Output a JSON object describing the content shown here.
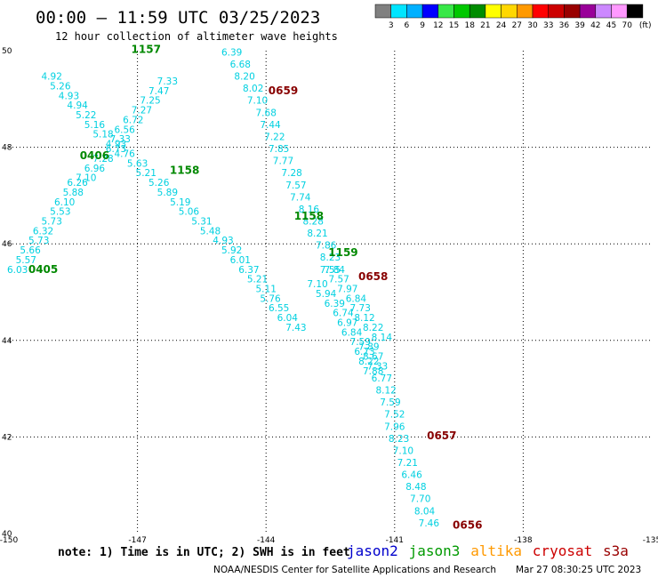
{
  "header": {
    "title": "00:00 – 11:59 UTC 03/25/2023",
    "subtitle": "12 hour collection of altimeter wave heights"
  },
  "color_scale": {
    "labels": [
      "3",
      "6",
      "9",
      "12",
      "15",
      "18",
      "21",
      "24",
      "27",
      "30",
      "33",
      "36",
      "39",
      "42",
      "45",
      "70"
    ],
    "unit": "(ft)",
    "colors": [
      "#808080",
      "#00e5ff",
      "#00b0ff",
      "#0000ff",
      "#38e848",
      "#00c800",
      "#008c00",
      "#ffff00",
      "#ffd700",
      "#ff9900",
      "#ff0000",
      "#cc0000",
      "#990000",
      "#990099",
      "#cc88ff",
      "#ff99ff",
      "#000000"
    ]
  },
  "footer": {
    "note": "note: 1) Time is in UTC; 2) SWH is in feet",
    "satellites": [
      {
        "name": "jason2",
        "color": "#0000cc"
      },
      {
        "name": "jason3",
        "color": "#009900"
      },
      {
        "name": "altika",
        "color": "#ff9900"
      },
      {
        "name": "cryosat",
        "color": "#cc0000"
      },
      {
        "name": "s3a",
        "color": "#990000"
      }
    ],
    "credit": "NOAA/NESDIS Center for Satellite Applications and Research",
    "timestamp": "Mar 27 08:30:25 UTC 2023"
  },
  "chart_data": {
    "type": "scatter",
    "xlim": [
      -150,
      -135
    ],
    "ylim": [
      40,
      50
    ],
    "x_ticks": [
      "-150",
      "-147",
      "-144",
      "-141",
      "-138",
      "-135"
    ],
    "y_ticks": [
      "40",
      "42",
      "44",
      "46",
      "48",
      "50"
    ],
    "grid": true,
    "point_color": "#00d0e0",
    "tracks": [
      {
        "label": "0405",
        "label_color": "#008800",
        "label_pos": [
          -149.2,
          45.4
        ],
        "points": [
          [
            -149.8,
            45.4,
            "6.03"
          ],
          [
            -149.6,
            45.6,
            "5.57"
          ],
          [
            -149.5,
            45.8,
            "5.66"
          ],
          [
            -149.3,
            46.0,
            "5.73"
          ],
          [
            -149.2,
            46.2,
            "6.32"
          ],
          [
            -149.0,
            46.4,
            "5.73"
          ],
          [
            -148.8,
            46.6,
            "5.53"
          ],
          [
            -148.7,
            46.8,
            "6.10"
          ],
          [
            -148.5,
            47.0,
            "5.88"
          ],
          [
            -148.4,
            47.2,
            "6.26"
          ],
          [
            -148.2,
            47.3,
            "7.10"
          ],
          [
            -148.0,
            47.5,
            "6.96"
          ],
          [
            -147.8,
            47.7,
            "7.28"
          ],
          [
            -147.5,
            47.9,
            "6.73"
          ],
          [
            -147.4,
            48.1,
            "7.33"
          ],
          [
            -147.3,
            48.3,
            "6.56"
          ],
          [
            -147.1,
            48.5,
            "6.72"
          ],
          [
            -146.9,
            48.7,
            "7.27"
          ],
          [
            -146.7,
            48.9,
            "7.25"
          ],
          [
            -146.5,
            49.1,
            "7.47"
          ],
          [
            -146.3,
            49.3,
            "7.33"
          ]
        ]
      },
      {
        "label": "0406",
        "label_color": "#008800",
        "label_pos": [
          -148.0,
          47.75
        ],
        "points": []
      },
      {
        "label": "1157",
        "label_color": "#008800",
        "label_pos": [
          -146.8,
          49.95
        ],
        "points": [
          [
            -149.0,
            49.4,
            "4.92"
          ],
          [
            -148.8,
            49.2,
            "5.26"
          ],
          [
            -148.6,
            49.0,
            "4.93"
          ],
          [
            -148.4,
            48.8,
            "4.94"
          ],
          [
            -148.2,
            48.6,
            "5.22"
          ],
          [
            -148.0,
            48.4,
            "5.16"
          ],
          [
            -147.8,
            48.2,
            "5.18"
          ],
          [
            -147.5,
            48.0,
            "4.93"
          ],
          [
            -147.3,
            47.8,
            "4.76"
          ],
          [
            -147.0,
            47.6,
            "5.63"
          ],
          [
            -146.8,
            47.4,
            "5.21"
          ],
          [
            -146.5,
            47.2,
            "5.26"
          ],
          [
            -146.3,
            47.0,
            "5.89"
          ],
          [
            -146.0,
            46.8,
            "5.19"
          ],
          [
            -145.8,
            46.6,
            "5.06"
          ],
          [
            -145.5,
            46.4,
            "5.31"
          ],
          [
            -145.3,
            46.2,
            "5.48"
          ],
          [
            -145.0,
            46.0,
            "4.93"
          ],
          [
            -144.8,
            45.8,
            "5.92"
          ],
          [
            -144.6,
            45.6,
            "6.01"
          ],
          [
            -144.4,
            45.4,
            "6.37"
          ],
          [
            -144.2,
            45.2,
            "5.21"
          ],
          [
            -144.0,
            45.0,
            "5.11"
          ],
          [
            -143.9,
            44.8,
            "5.76"
          ],
          [
            -143.7,
            44.6,
            "6.55"
          ],
          [
            -143.5,
            44.4,
            "6.04"
          ],
          [
            -143.3,
            44.2,
            "7.43"
          ]
        ]
      },
      {
        "label": "1158",
        "label_color": "#008800",
        "label_pos": [
          -145.9,
          47.45
        ],
        "points": []
      },
      {
        "label": "0659",
        "label_color": "#880000",
        "label_pos": [
          -143.6,
          49.1
        ],
        "points": [
          [
            -144.8,
            49.9,
            "6.39"
          ],
          [
            -144.6,
            49.65,
            "6.68"
          ],
          [
            -144.5,
            49.4,
            "8.20"
          ],
          [
            -144.3,
            49.15,
            "8.02"
          ],
          [
            -144.2,
            48.9,
            "7.10"
          ],
          [
            -144.0,
            48.65,
            "7.68"
          ],
          [
            -143.9,
            48.4,
            "7.44"
          ],
          [
            -143.8,
            48.15,
            "7.22"
          ],
          [
            -143.7,
            47.9,
            "7.85"
          ],
          [
            -143.6,
            47.65,
            "7.77"
          ],
          [
            -143.4,
            47.4,
            "7.28"
          ],
          [
            -143.3,
            47.15,
            "7.57"
          ],
          [
            -143.2,
            46.9,
            "7.74"
          ],
          [
            -143.0,
            46.65,
            "8.16"
          ],
          [
            -142.9,
            46.4,
            "8.28"
          ],
          [
            -142.8,
            46.15,
            "8.21"
          ],
          [
            -142.6,
            45.9,
            "7.86"
          ],
          [
            -142.5,
            45.65,
            "8.23"
          ],
          [
            -142.4,
            45.4,
            "7.84"
          ]
        ]
      },
      {
        "label": "1158",
        "label_color": "#008800",
        "label_pos": [
          -143.0,
          46.5
        ],
        "points": []
      },
      {
        "label": "1159",
        "label_color": "#008800",
        "label_pos": [
          -142.2,
          45.75
        ],
        "points": [
          [
            -142.8,
            45.1,
            "7.10"
          ],
          [
            -142.6,
            44.9,
            "5.94"
          ],
          [
            -142.4,
            44.7,
            "6.39"
          ],
          [
            -142.2,
            44.5,
            "6.74"
          ],
          [
            -142.1,
            44.3,
            "6.97"
          ],
          [
            -142.0,
            44.1,
            "6.84"
          ],
          [
            -141.8,
            43.9,
            "7.59"
          ],
          [
            -141.7,
            43.7,
            "6.73"
          ],
          [
            -141.6,
            43.5,
            "8.22"
          ],
          [
            -141.5,
            43.3,
            "7.88"
          ]
        ]
      },
      {
        "label": "0658",
        "label_color": "#880000",
        "label_pos": [
          -141.5,
          45.25
        ],
        "points": [
          [
            -142.5,
            45.4,
            "7.55"
          ],
          [
            -142.3,
            45.2,
            "7.57"
          ],
          [
            -142.1,
            45.0,
            "7.97"
          ],
          [
            -141.9,
            44.8,
            "6.84"
          ],
          [
            -141.8,
            44.6,
            "7.73"
          ],
          [
            -141.7,
            44.4,
            "8.12"
          ],
          [
            -141.5,
            44.2,
            "8.22"
          ],
          [
            -141.3,
            44.0,
            "8.14"
          ],
          [
            -141.6,
            43.8,
            "7.89"
          ],
          [
            -141.5,
            43.6,
            "8.67"
          ],
          [
            -141.4,
            43.4,
            "7.33"
          ],
          [
            -141.3,
            43.15,
            "6.77"
          ],
          [
            -141.2,
            42.9,
            "8.12"
          ],
          [
            -141.1,
            42.65,
            "7.59"
          ],
          [
            -141.0,
            42.4,
            "7.52"
          ]
        ]
      },
      {
        "label": "0657",
        "label_color": "#880000",
        "label_pos": [
          -139.9,
          41.95
        ],
        "points": [
          [
            -141.0,
            42.15,
            "7.96"
          ],
          [
            -140.9,
            41.9,
            "8.23"
          ],
          [
            -140.8,
            41.65,
            "7.10"
          ],
          [
            -140.7,
            41.4,
            "7.21"
          ],
          [
            -140.6,
            41.15,
            "6.46"
          ],
          [
            -140.5,
            40.9,
            "8.48"
          ],
          [
            -140.4,
            40.65,
            "7.70"
          ],
          [
            -140.3,
            40.4,
            "8.04"
          ],
          [
            -140.2,
            40.15,
            "7.46"
          ]
        ]
      },
      {
        "label": "0656",
        "label_color": "#880000",
        "label_pos": [
          -139.3,
          40.1
        ],
        "points": []
      }
    ]
  }
}
